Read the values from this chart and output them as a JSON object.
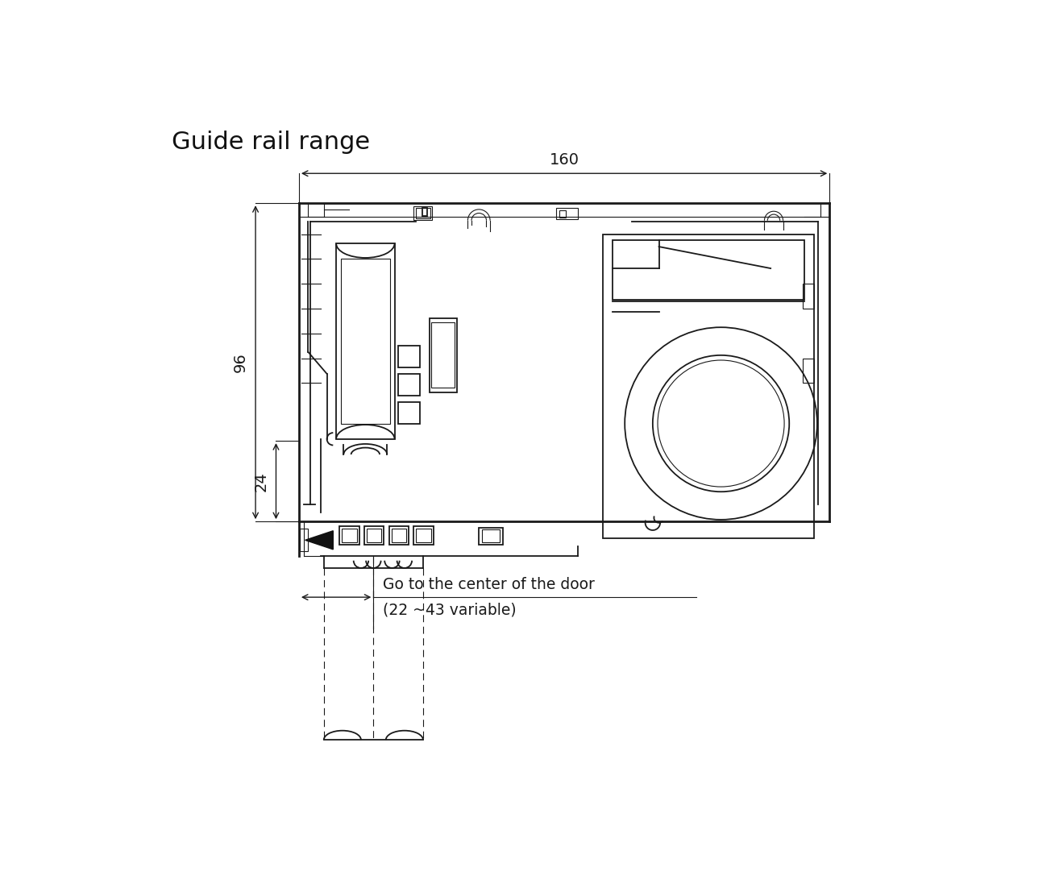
{
  "title": "Guide rail range",
  "title_fontsize": 22,
  "bg_color": "#ffffff",
  "line_color": "#1a1a1a",
  "dim_color": "#1a1a1a",
  "dim_160_label": "160",
  "dim_96_label": "96",
  "dim_24_label": "24",
  "text_center": "Go to the center of the door",
  "text_variable": "(22 ~43 variable)",
  "note_fontsize": 13.5,
  "fig_w": 13.09,
  "fig_h": 11.07,
  "dpi": 100
}
